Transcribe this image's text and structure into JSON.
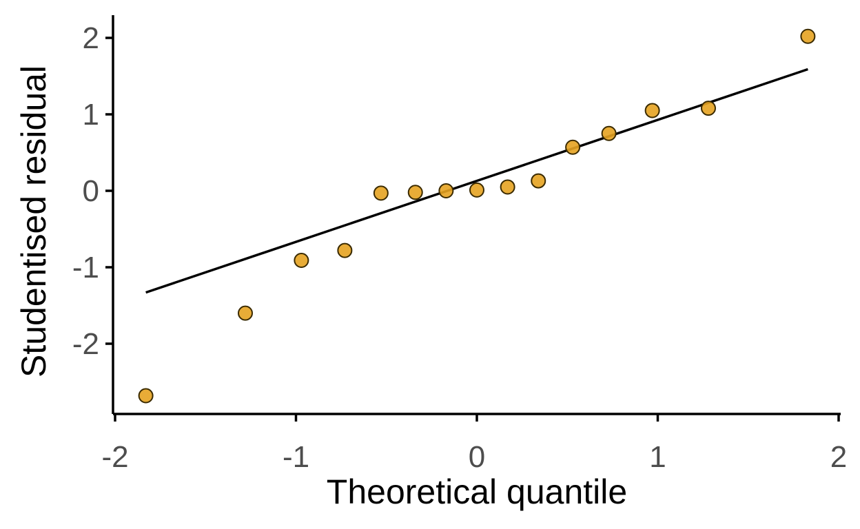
{
  "chart_data": {
    "type": "scatter",
    "title": "",
    "xlabel": "Theoretical quantile",
    "ylabel": "Studentised residual",
    "xlim": [
      -2,
      2
    ],
    "ylim": [
      -2.8,
      2.2
    ],
    "x_ticks": [
      -2,
      -1,
      0,
      1,
      2
    ],
    "y_ticks": [
      -2,
      -1,
      0,
      1,
      2
    ],
    "x_tick_labels": [
      "-2",
      "-1",
      "0",
      "1",
      "2"
    ],
    "y_tick_labels": [
      "-2",
      "-1",
      "0",
      "1",
      "2"
    ],
    "grid": false,
    "legend": "none",
    "point_color": "#E6A321",
    "line_color": "#000000",
    "series": [
      {
        "x": [
          -1.83,
          -1.28,
          -0.97,
          -0.73,
          -0.53,
          -0.34,
          -0.17,
          0.0,
          0.17,
          0.34,
          0.53,
          0.73,
          0.97,
          1.28,
          1.83
        ],
        "y": [
          -2.68,
          -1.6,
          -0.91,
          -0.78,
          -0.03,
          -0.02,
          0.0,
          0.01,
          0.05,
          0.13,
          0.57,
          0.75,
          1.05,
          1.08,
          2.02
        ]
      }
    ],
    "reference_line": {
      "x": [
        -1.83,
        1.83
      ],
      "y": [
        -1.33,
        1.59
      ]
    }
  }
}
